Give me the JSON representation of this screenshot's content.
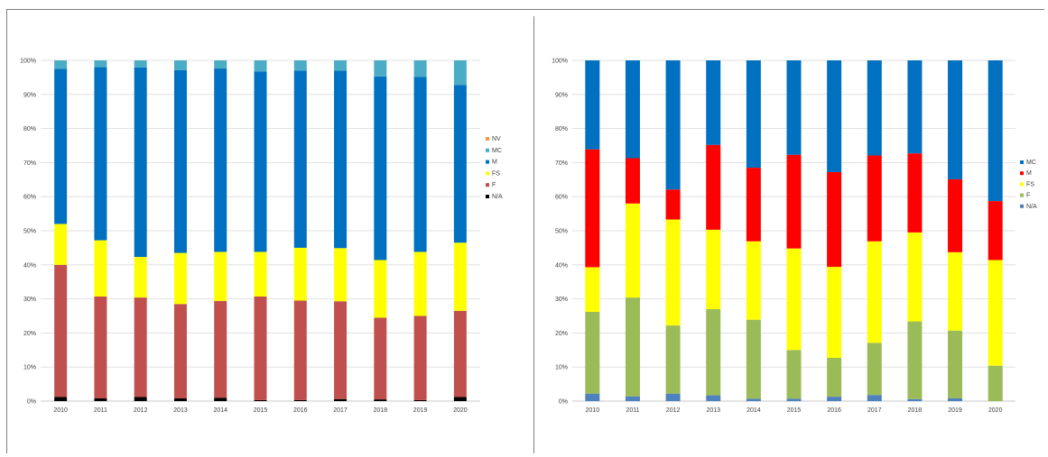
{
  "chart_data": [
    {
      "type": "bar",
      "stacked": true,
      "percent": true,
      "categories": [
        "2010",
        "2011",
        "2012",
        "2013",
        "2014",
        "2015",
        "2016",
        "2017",
        "2018",
        "2019",
        "2020"
      ],
      "ylim": [
        0,
        100
      ],
      "yticks": [
        "0%",
        "10%",
        "20%",
        "30%",
        "40%",
        "50%",
        "60%",
        "70%",
        "80%",
        "90%",
        "100%"
      ],
      "grid": true,
      "legend_position": "right",
      "legend_order": [
        "NV",
        "MC",
        "M",
        "FS",
        "F",
        "N/A"
      ],
      "series": [
        {
          "name": "N/A",
          "color": "#000000",
          "values": [
            1.2,
            0.8,
            1.2,
            0.8,
            1.0,
            0.3,
            0.3,
            0.6,
            0.5,
            0.3,
            1.2
          ]
        },
        {
          "name": "F",
          "color": "#c0504d",
          "values": [
            38.8,
            29.9,
            29.2,
            27.7,
            28.4,
            30.4,
            29.2,
            28.7,
            24.0,
            24.7,
            25.3
          ]
        },
        {
          "name": "FS",
          "color": "#ffff00",
          "values": [
            12.0,
            16.5,
            11.9,
            15.0,
            14.4,
            13.1,
            15.5,
            15.6,
            16.9,
            18.8,
            20.0
          ]
        },
        {
          "name": "M",
          "color": "#0070c0",
          "values": [
            45.5,
            50.8,
            55.6,
            53.6,
            53.8,
            52.9,
            52.0,
            52.1,
            53.9,
            51.3,
            46.3
          ]
        },
        {
          "name": "MC",
          "color": "#4bacc6",
          "values": [
            2.5,
            2.0,
            2.1,
            2.9,
            2.4,
            3.3,
            3.0,
            3.0,
            4.7,
            4.9,
            7.2
          ]
        },
        {
          "name": "NV",
          "color": "#f79646",
          "values": [
            0,
            0,
            0,
            0,
            0,
            0,
            0,
            0,
            0,
            0,
            0
          ]
        }
      ]
    },
    {
      "type": "bar",
      "stacked": true,
      "percent": true,
      "categories": [
        "2010",
        "2011",
        "2012",
        "2013",
        "2014",
        "2015",
        "2016",
        "2017",
        "2018",
        "2019",
        "2020"
      ],
      "ylim": [
        0,
        100
      ],
      "yticks": [
        "0%",
        "10%",
        "20%",
        "30%",
        "40%",
        "50%",
        "60%",
        "70%",
        "80%",
        "90%",
        "100%"
      ],
      "grid": true,
      "legend_position": "right",
      "legend_order": [
        "MC",
        "M",
        "FS",
        "F",
        "N/A"
      ],
      "series": [
        {
          "name": "N/A",
          "color": "#4f81bd",
          "values": [
            2.2,
            1.4,
            2.2,
            1.7,
            0.7,
            0.7,
            1.3,
            1.8,
            0.6,
            0.8,
            0
          ]
        },
        {
          "name": "F",
          "color": "#9bbb59",
          "values": [
            24.0,
            29.0,
            20.0,
            25.3,
            23.2,
            14.3,
            11.4,
            15.3,
            22.8,
            19.9,
            10.4
          ]
        },
        {
          "name": "FS",
          "color": "#ffff00",
          "values": [
            13.1,
            27.6,
            31.1,
            23.3,
            23.0,
            29.8,
            26.7,
            29.8,
            26.1,
            23.0,
            31.0
          ]
        },
        {
          "name": "M",
          "color": "#ff0000",
          "values": [
            34.6,
            13.3,
            8.8,
            24.9,
            21.6,
            27.5,
            27.8,
            25.2,
            23.2,
            21.4,
            17.3
          ]
        },
        {
          "name": "MC",
          "color": "#0070c0",
          "values": [
            26.1,
            28.7,
            37.9,
            24.8,
            31.5,
            27.7,
            32.8,
            27.9,
            27.3,
            34.9,
            41.3
          ]
        }
      ]
    }
  ]
}
